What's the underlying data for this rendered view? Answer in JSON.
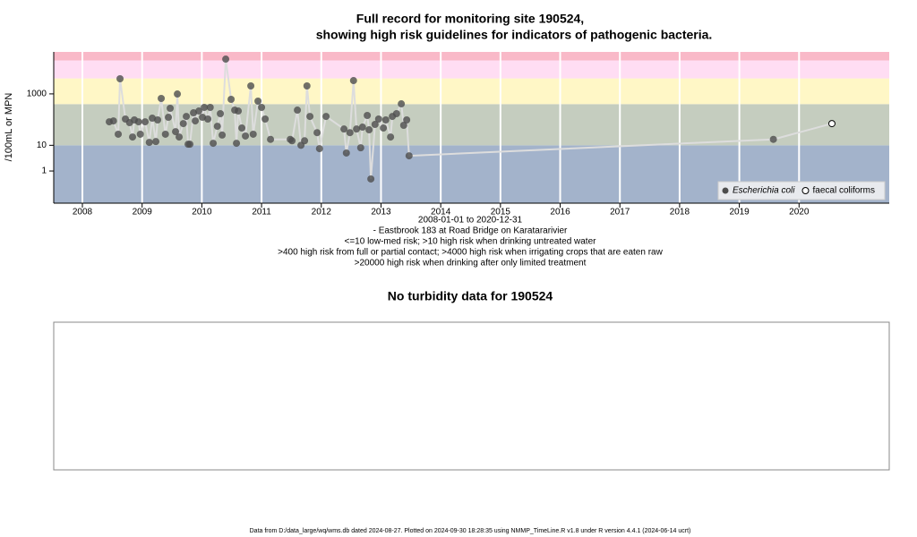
{
  "chart_data": [
    {
      "type": "scatter",
      "title": [
        "Full record for monitoring site 190524,",
        "showing high risk guidelines for indicators of pathogenic bacteria."
      ],
      "ylabel": "/100mL or MPN",
      "xlabel_lines": [
        "2008-01-01 to 2020-12-31",
        "- Eastbrook 183 at Road Bridge on Karatararivier",
        "<=10 low-med risk; >10 high risk when drinking untreated water",
        ">400 high risk from full or partial contact; >4000 high risk when irrigating crops that are eaten raw",
        ">20000 high risk when drinking after only limited treatment"
      ],
      "log_y": true,
      "ylim": [
        0.056,
        43000
      ],
      "yticks": [
        1,
        10,
        1000
      ],
      "xlim": [
        2007.52,
        2021.51
      ],
      "xticks": [
        2008,
        2009,
        2010,
        2011,
        2012,
        2013,
        2014,
        2015,
        2016,
        2017,
        2018,
        2019,
        2020
      ],
      "grid": true,
      "band_limits": [
        10,
        400,
        4000,
        20000
      ],
      "band_colors": [
        "#a3b3cb",
        "#c5cdbf",
        "#fff7c6",
        "#ffddf3",
        "#f9b9c8"
      ],
      "line_color": "#dddddd",
      "legend": "bottom-right",
      "series": [
        {
          "name": "Escherichia coli",
          "color": "#4d4d4d",
          "marker": "filled",
          "x": [
            2008.45,
            2008.52,
            2008.6,
            2008.63,
            2008.72,
            2008.79,
            2008.84,
            2008.87,
            2008.94,
            2008.97,
            2009.05,
            2009.12,
            2009.17,
            2009.23,
            2009.26,
            2009.32,
            2009.39,
            2009.44,
            2009.47,
            2009.56,
            2009.59,
            2009.62,
            2009.69,
            2009.74,
            2009.77,
            2009.8,
            2009.86,
            2009.89,
            2009.95,
            2010.01,
            2010.04,
            2010.1,
            2010.14,
            2010.19,
            2010.26,
            2010.31,
            2010.34,
            2010.4,
            2010.49,
            2010.55,
            2010.58,
            2010.61,
            2010.67,
            2010.73,
            2010.82,
            2010.86,
            2010.94,
            2011.0,
            2011.06,
            2011.15,
            2011.48,
            2011.51,
            2011.6,
            2011.66,
            2011.72,
            2011.76,
            2011.81,
            2011.93,
            2011.97,
            2012.08,
            2012.38,
            2012.42,
            2012.48,
            2012.54,
            2012.59,
            2012.66,
            2012.69,
            2012.77,
            2012.8,
            2012.83,
            2012.9,
            2012.96,
            2013.04,
            2013.08,
            2013.16,
            2013.19,
            2013.26,
            2013.34,
            2013.38,
            2013.43,
            2013.47,
            2019.57
          ],
          "values": [
            82,
            89,
            27,
            3880,
            105,
            76,
            21,
            97,
            82,
            27,
            82,
            13,
            114,
            14,
            97,
            664,
            27,
            123,
            275,
            34,
            990,
            21,
            70,
            133,
            11,
            11,
            184,
            89,
            216,
            123,
            298,
            105,
            298,
            12,
            55,
            170,
            25,
            22600,
            613,
            234,
            12,
            216,
            47,
            23,
            2040,
            27,
            522,
            298,
            105,
            17,
            17,
            15,
            234,
            10,
            15,
            2040,
            133,
            31,
            7.4,
            133,
            43,
            5,
            31,
            3300,
            43,
            8,
            51,
            145,
            40,
            0.49,
            65,
            105,
            47,
            97,
            21,
            133,
            170,
            410,
            60,
            97,
            3.9,
            17
          ]
        },
        {
          "name": "faecal coliforms",
          "color": "#000000",
          "marker": "open",
          "x": [
            2020.55
          ],
          "values": [
            70
          ]
        }
      ]
    },
    {
      "type": "empty",
      "title": "No turbidity data for 190524"
    }
  ],
  "footer": "Data from D:/data_large/wq/wms.db dated 2024-08-27. Plotted on 2024-09-30 18:28:35 using NMMP_TimeLine.R v1.8 under R version 4.4.1 (2024-06-14 ucrt)"
}
